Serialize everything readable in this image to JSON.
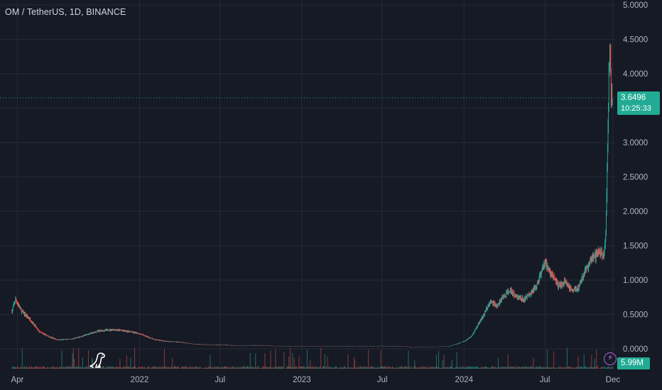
{
  "header": {
    "title": "OM / TetherUS, 1D, BINANCE"
  },
  "price_badge": {
    "price": "3.6496",
    "countdown": "10:25:33"
  },
  "volume_badge": {
    "value": "5.99M"
  },
  "colors": {
    "background": "#161a25",
    "grid": "#242936",
    "up": "#26a69a",
    "down": "#ef5350",
    "badge": "#22ab94",
    "text": "#b2b5be"
  },
  "icons": {
    "logo": "dinosaur-logo-icon",
    "alert": "lightning-bolt-icon"
  },
  "chart_data": {
    "type": "candlestick",
    "title": "OM / TetherUS, 1D, BINANCE",
    "xlabel": "",
    "ylabel": "",
    "ylim": [
      0,
      5
    ],
    "grid": true,
    "last_price": 3.6496,
    "y_ticks": [
      "5.0000",
      "4.5000",
      "4.0000",
      "3.5000",
      "3.0000",
      "2.5000",
      "2.0000",
      "1.5000",
      "1.0000",
      "0.5000",
      "0.0000"
    ],
    "x_ticks": [
      "Apr",
      "2022",
      "Jul",
      "2023",
      "Jul",
      "2024",
      "Jul",
      "Dec"
    ],
    "series": [
      {
        "dates": [
          "2021-03-20",
          "2021-03-28",
          "2021-04-10",
          "2021-05-01",
          "2021-05-20",
          "2021-06-10",
          "2021-07-01",
          "2021-08-01",
          "2021-09-01",
          "2021-10-01",
          "2021-11-01",
          "2021-12-01",
          "2022-01-01",
          "2022-02-01",
          "2022-03-01",
          "2022-04-01",
          "2022-05-01",
          "2022-06-01",
          "2022-07-01",
          "2022-08-01",
          "2022-09-01",
          "2022-10-01",
          "2022-11-01",
          "2022-12-01",
          "2023-01-01",
          "2023-02-01",
          "2023-03-01",
          "2023-04-01",
          "2023-05-01",
          "2023-06-01",
          "2023-07-01",
          "2023-08-01",
          "2023-09-01",
          "2023-10-01",
          "2023-11-01",
          "2023-12-01",
          "2023-12-20",
          "2024-01-05",
          "2024-01-20",
          "2024-02-01",
          "2024-02-15",
          "2024-03-01",
          "2024-03-15",
          "2024-04-01",
          "2024-04-15",
          "2024-05-01",
          "2024-05-15",
          "2024-06-01",
          "2024-06-15",
          "2024-07-01",
          "2024-07-15",
          "2024-08-01",
          "2024-08-15",
          "2024-09-01",
          "2024-09-15",
          "2024-10-01",
          "2024-10-15",
          "2024-11-01",
          "2024-11-10",
          "2024-11-15",
          "2024-11-18",
          "2024-11-21",
          "2024-11-24",
          "2024-11-27",
          "2024-11-30"
        ],
        "close": [
          0.55,
          0.72,
          0.55,
          0.42,
          0.25,
          0.18,
          0.13,
          0.14,
          0.2,
          0.26,
          0.28,
          0.26,
          0.22,
          0.14,
          0.11,
          0.1,
          0.07,
          0.06,
          0.06,
          0.05,
          0.05,
          0.05,
          0.04,
          0.04,
          0.04,
          0.04,
          0.04,
          0.04,
          0.04,
          0.04,
          0.04,
          0.04,
          0.03,
          0.03,
          0.03,
          0.04,
          0.08,
          0.12,
          0.2,
          0.35,
          0.5,
          0.7,
          0.62,
          0.78,
          0.85,
          0.75,
          0.72,
          0.82,
          0.95,
          1.25,
          1.1,
          0.9,
          0.98,
          0.85,
          0.9,
          1.15,
          1.3,
          1.4,
          1.35,
          1.7,
          2.55,
          3.6,
          4.4,
          3.75,
          3.65
        ]
      }
    ],
    "volume_badge": "5.99M"
  }
}
